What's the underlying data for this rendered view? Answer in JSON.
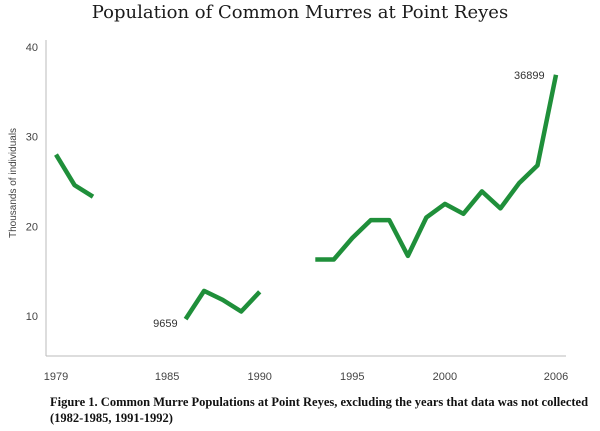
{
  "chart_data": {
    "type": "line",
    "title": "Population of Common Murres at Point Reyes",
    "xlabel": "",
    "ylabel": "Thousands of individuals",
    "xlim": [
      1979,
      2006
    ],
    "ylim": [
      7000,
      40000
    ],
    "x_ticks": [
      {
        "value": 1979,
        "label": "1979"
      },
      {
        "value": 1985,
        "label": "1985"
      },
      {
        "value": 1990,
        "label": "1990"
      },
      {
        "value": 1995,
        "label": "1995"
      },
      {
        "value": 2000,
        "label": "2000"
      },
      {
        "value": 2006,
        "label": "2006"
      }
    ],
    "y_ticks": [
      {
        "value": 10000,
        "label": "10"
      },
      {
        "value": 20000,
        "label": "20"
      },
      {
        "value": 30000,
        "label": "30"
      },
      {
        "value": 40000,
        "label": "40"
      }
    ],
    "grid": false,
    "legend": "none",
    "line_color": "#1f8f3a",
    "series": [
      {
        "name": "",
        "segments": [
          [
            [
              1979,
              28000
            ],
            [
              1980,
              24600
            ],
            [
              1981,
              23300
            ]
          ],
          [
            [
              1986,
              9659
            ],
            [
              1987,
              12800
            ],
            [
              1988,
              11800
            ],
            [
              1989,
              10500
            ],
            [
              1990,
              12700
            ]
          ],
          [
            [
              1993,
              16300
            ],
            [
              1994,
              16300
            ],
            [
              1995,
              18700
            ],
            [
              1996,
              20700
            ],
            [
              1997,
              20700
            ],
            [
              1998,
              16700
            ],
            [
              1999,
              21000
            ],
            [
              2000,
              22500
            ],
            [
              2001,
              21400
            ],
            [
              2002,
              23900
            ],
            [
              2003,
              22000
            ],
            [
              2004,
              24800
            ],
            [
              2005,
              26800
            ],
            [
              2006,
              36899
            ]
          ]
        ]
      }
    ],
    "annotations": [
      {
        "text": "9659",
        "x": 1986,
        "y": 9659,
        "anchor": "left"
      },
      {
        "text": "36899",
        "x": 2006,
        "y": 36899,
        "anchor": "left"
      }
    ]
  },
  "caption": "Figure 1. Common Murre Populations at Point Reyes, excluding the years that data was  not collected (1982-1985, 1991-1992)"
}
